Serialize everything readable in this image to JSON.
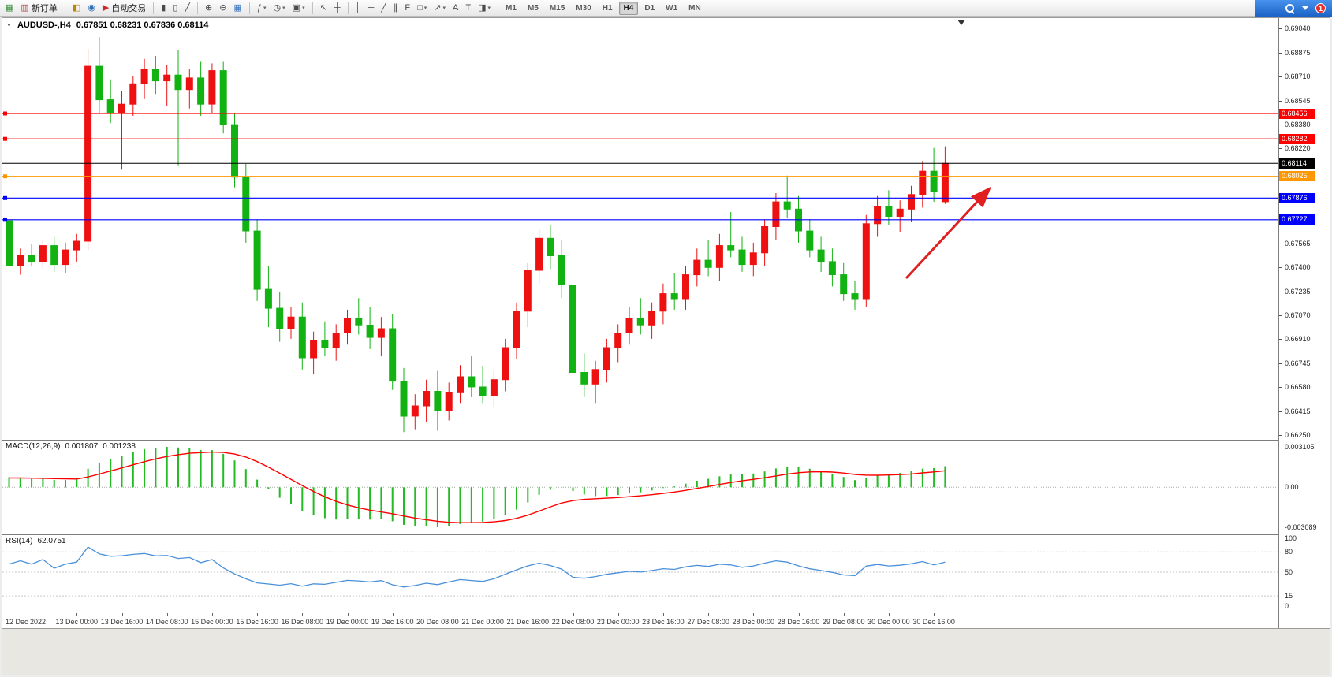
{
  "toolbar": {
    "caret_glyph": "▾",
    "groups": [
      {
        "items": [
          {
            "name": "new-chart-icon",
            "glyph": "▦",
            "color": "#3a8f3a"
          },
          {
            "name": "new-order-button",
            "glyph": "▥",
            "color": "#b04040",
            "label": "新订单"
          }
        ]
      },
      {
        "items": [
          {
            "name": "charts-icon",
            "glyph": "◧",
            "color": "#b8860b"
          },
          {
            "name": "market-watch-icon",
            "glyph": "◉",
            "color": "#2b6cb8"
          },
          {
            "name": "auto-trading-button",
            "glyph": "▶",
            "color": "#cc2b2b",
            "label": "自动交易"
          }
        ]
      },
      {
        "items": [
          {
            "name": "bar-chart-icon",
            "glyph": "▮"
          },
          {
            "name": "candlestick-chart-icon",
            "glyph": "▯"
          },
          {
            "name": "line-chart-icon",
            "glyph": "╱"
          }
        ]
      },
      {
        "items": [
          {
            "name": "zoom-in-icon",
            "glyph": "⊕"
          },
          {
            "name": "zoom-out-icon",
            "glyph": "⊖"
          },
          {
            "name": "tile-windows-icon",
            "glyph": "▦",
            "color": "#2b6cb8"
          }
        ]
      },
      {
        "items": [
          {
            "name": "indicators-icon",
            "glyph": "ƒ",
            "caret": true
          },
          {
            "name": "periods-icon",
            "glyph": "◷",
            "caret": true
          },
          {
            "name": "templates-icon",
            "glyph": "▣",
            "caret": true
          }
        ]
      },
      {
        "items": [
          {
            "name": "cursor-icon",
            "glyph": "↖"
          },
          {
            "name": "crosshair-icon",
            "glyph": "┼"
          }
        ]
      },
      {
        "items": [
          {
            "name": "vertical-line-icon",
            "glyph": "│"
          },
          {
            "name": "horizontal-line-icon",
            "glyph": "─"
          },
          {
            "name": "trendline-icon",
            "glyph": "╱"
          },
          {
            "name": "equidistant-channel-icon",
            "glyph": "∥"
          },
          {
            "name": "fibonacci-icon",
            "glyph": "F"
          },
          {
            "name": "shapes-icon",
            "glyph": "□",
            "caret": true
          },
          {
            "name": "arrows-icon",
            "glyph": "↗",
            "caret": true
          },
          {
            "name": "text-icon",
            "glyph": "A"
          },
          {
            "name": "text-label-icon",
            "glyph": "T"
          },
          {
            "name": "drawing-properties-icon",
            "glyph": "◨",
            "caret": true
          }
        ]
      }
    ],
    "timeframes": [
      "M1",
      "M5",
      "M15",
      "M30",
      "H1",
      "H4",
      "D1",
      "W1",
      "MN"
    ],
    "active_timeframe": "H4",
    "notification_badge": "1"
  },
  "window": {
    "one_click_glyph": "▼"
  },
  "chart_data": {
    "type": "candlestick",
    "symbol": "AUDUSD-",
    "timeframe": "H4",
    "title": "AUDUSD-,H4",
    "ohlc_text": "0.67851 0.68231 0.67836 0.68114",
    "current_bar": {
      "open": 0.67851,
      "high": 0.68231,
      "low": 0.67836,
      "close": 0.68114
    },
    "ylim": [
      0.6625,
      0.6904
    ],
    "price_ticks": [
      "0.69040",
      "0.68875",
      "0.68710",
      "0.68545",
      "0.68380",
      "0.68220",
      "0.67565",
      "0.67400",
      "0.67235",
      "0.67070",
      "0.66910",
      "0.66745",
      "0.66580",
      "0.66415",
      "0.66250"
    ],
    "current_price_label": "0.68114",
    "horizontal_lines": [
      {
        "price": 0.68456,
        "label": "0.68456",
        "color": "#ff0000",
        "type": "resistance"
      },
      {
        "price": 0.68282,
        "label": "0.68282",
        "color": "#ff0000",
        "type": "resistance"
      },
      {
        "price": 0.68025,
        "label": "0.68025",
        "color": "#ff9800",
        "type": "level"
      },
      {
        "price": 0.67876,
        "label": "0.67876",
        "color": "#0000ff",
        "type": "support"
      },
      {
        "price": 0.67727,
        "label": "0.67727",
        "color": "#0000ff",
        "type": "support"
      }
    ],
    "annotation_arrow": {
      "color": "#e02020",
      "direction": "up-right"
    },
    "up_color": "#ee1111",
    "down_color": "#12b212",
    "candles_ohlc": [
      [
        0.6772,
        0.6776,
        0.6734,
        0.6741
      ],
      [
        0.6741,
        0.6753,
        0.6735,
        0.6748
      ],
      [
        0.6748,
        0.6756,
        0.6741,
        0.6744
      ],
      [
        0.6744,
        0.6759,
        0.674,
        0.6755
      ],
      [
        0.6755,
        0.6761,
        0.6737,
        0.6742
      ],
      [
        0.6742,
        0.6757,
        0.6736,
        0.6752
      ],
      [
        0.6752,
        0.6763,
        0.6744,
        0.6758
      ],
      [
        0.6758,
        0.689,
        0.6752,
        0.6878
      ],
      [
        0.6878,
        0.6898,
        0.6846,
        0.6855
      ],
      [
        0.6855,
        0.6869,
        0.6839,
        0.6846
      ],
      [
        0.6846,
        0.6861,
        0.6807,
        0.6852
      ],
      [
        0.6852,
        0.6871,
        0.6844,
        0.6866
      ],
      [
        0.6866,
        0.6883,
        0.6856,
        0.6876
      ],
      [
        0.6876,
        0.6885,
        0.6859,
        0.6868
      ],
      [
        0.6868,
        0.6879,
        0.6851,
        0.6872
      ],
      [
        0.6872,
        0.6889,
        0.681,
        0.6862
      ],
      [
        0.6862,
        0.6876,
        0.6849,
        0.687
      ],
      [
        0.687,
        0.6881,
        0.6844,
        0.6852
      ],
      [
        0.6852,
        0.688,
        0.6846,
        0.6875
      ],
      [
        0.6875,
        0.6881,
        0.6832,
        0.6838
      ],
      [
        0.6838,
        0.6846,
        0.6795,
        0.6802
      ],
      [
        0.6802,
        0.6811,
        0.6757,
        0.6765
      ],
      [
        0.6765,
        0.6773,
        0.6717,
        0.6725
      ],
      [
        0.6725,
        0.6741,
        0.6699,
        0.6712
      ],
      [
        0.6712,
        0.6723,
        0.6689,
        0.6698
      ],
      [
        0.6698,
        0.6713,
        0.6691,
        0.6706
      ],
      [
        0.6706,
        0.6716,
        0.667,
        0.6678
      ],
      [
        0.6678,
        0.6696,
        0.6667,
        0.669
      ],
      [
        0.669,
        0.6703,
        0.6679,
        0.6685
      ],
      [
        0.6685,
        0.6701,
        0.6676,
        0.6695
      ],
      [
        0.6695,
        0.6711,
        0.6687,
        0.6705
      ],
      [
        0.6705,
        0.6719,
        0.6694,
        0.67
      ],
      [
        0.67,
        0.6713,
        0.6684,
        0.6692
      ],
      [
        0.6692,
        0.6706,
        0.6679,
        0.6698
      ],
      [
        0.6698,
        0.6708,
        0.6656,
        0.6662
      ],
      [
        0.6662,
        0.6671,
        0.6627,
        0.6638
      ],
      [
        0.6638,
        0.6653,
        0.6629,
        0.6645
      ],
      [
        0.6645,
        0.6663,
        0.6634,
        0.6655
      ],
      [
        0.6655,
        0.6669,
        0.6628,
        0.6642
      ],
      [
        0.6642,
        0.6661,
        0.6635,
        0.6654
      ],
      [
        0.6654,
        0.6673,
        0.6647,
        0.6665
      ],
      [
        0.6665,
        0.6679,
        0.6651,
        0.6658
      ],
      [
        0.6658,
        0.6672,
        0.6647,
        0.6652
      ],
      [
        0.6652,
        0.6669,
        0.6644,
        0.6663
      ],
      [
        0.6663,
        0.6691,
        0.6655,
        0.6685
      ],
      [
        0.6685,
        0.6716,
        0.6677,
        0.671
      ],
      [
        0.671,
        0.6743,
        0.6699,
        0.6738
      ],
      [
        0.6738,
        0.6766,
        0.6729,
        0.676
      ],
      [
        0.676,
        0.6769,
        0.6739,
        0.6748
      ],
      [
        0.6748,
        0.6759,
        0.6719,
        0.6728
      ],
      [
        0.6728,
        0.6736,
        0.6659,
        0.6668
      ],
      [
        0.6668,
        0.6681,
        0.6651,
        0.666
      ],
      [
        0.666,
        0.6676,
        0.6647,
        0.667
      ],
      [
        0.667,
        0.6691,
        0.6661,
        0.6685
      ],
      [
        0.6685,
        0.6701,
        0.6675,
        0.6695
      ],
      [
        0.6695,
        0.6713,
        0.6687,
        0.6705
      ],
      [
        0.6705,
        0.6719,
        0.6694,
        0.67
      ],
      [
        0.67,
        0.6716,
        0.6691,
        0.671
      ],
      [
        0.671,
        0.6729,
        0.6701,
        0.6722
      ],
      [
        0.6722,
        0.6736,
        0.6711,
        0.6718
      ],
      [
        0.6718,
        0.6741,
        0.6711,
        0.6735
      ],
      [
        0.6735,
        0.6753,
        0.6727,
        0.6745
      ],
      [
        0.6745,
        0.6759,
        0.6734,
        0.674
      ],
      [
        0.674,
        0.6763,
        0.6731,
        0.6755
      ],
      [
        0.6755,
        0.6778,
        0.6747,
        0.6752
      ],
      [
        0.6752,
        0.6761,
        0.6737,
        0.6742
      ],
      [
        0.6742,
        0.6757,
        0.6734,
        0.675
      ],
      [
        0.675,
        0.6773,
        0.6741,
        0.6768
      ],
      [
        0.6768,
        0.6791,
        0.6759,
        0.6785
      ],
      [
        0.6785,
        0.6803,
        0.6774,
        0.678
      ],
      [
        0.678,
        0.6789,
        0.6757,
        0.6765
      ],
      [
        0.6765,
        0.6773,
        0.6747,
        0.6752
      ],
      [
        0.6752,
        0.6761,
        0.6737,
        0.6744
      ],
      [
        0.6744,
        0.6753,
        0.6727,
        0.6735
      ],
      [
        0.6735,
        0.6743,
        0.6717,
        0.6722
      ],
      [
        0.6722,
        0.6731,
        0.6711,
        0.6718
      ],
      [
        0.6718,
        0.6776,
        0.6713,
        0.677
      ],
      [
        0.677,
        0.6789,
        0.6761,
        0.6782
      ],
      [
        0.6782,
        0.6793,
        0.6769,
        0.6775
      ],
      [
        0.6775,
        0.6786,
        0.6764,
        0.678
      ],
      [
        0.678,
        0.6796,
        0.6771,
        0.679
      ],
      [
        0.679,
        0.6813,
        0.6781,
        0.6806
      ],
      [
        0.6806,
        0.6822,
        0.6785,
        0.6792
      ],
      [
        0.67851,
        0.68231,
        0.67836,
        0.68114
      ]
    ],
    "time_labels": [
      "12 Dec 2022",
      "13 Dec 00:00",
      "13 Dec 16:00",
      "14 Dec 08:00",
      "15 Dec 00:00",
      "15 Dec 16:00",
      "16 Dec 08:00",
      "19 Dec 00:00",
      "19 Dec 16:00",
      "20 Dec 08:00",
      "21 Dec 00:00",
      "21 Dec 16:00",
      "22 Dec 08:00",
      "23 Dec 00:00",
      "23 Dec 16:00",
      "27 Dec 08:00",
      "28 Dec 00:00",
      "28 Dec 16:00",
      "29 Dec 08:00",
      "30 Dec 00:00",
      "30 Dec 16:00"
    ],
    "macd": {
      "label": "MACD(12,26,9)",
      "value_main": "0.001807",
      "value_signal": "0.001238",
      "params": [
        12,
        26,
        9
      ],
      "scale_labels": {
        "top": "0.003105",
        "zero": "0.00",
        "bottom": "-0.003089"
      },
      "histogram_color": "#22bb22",
      "signal_color": "#ff0000"
    },
    "rsi": {
      "label": "RSI(14)",
      "value": "62.0751",
      "period": 14,
      "scale_labels": [
        "100",
        "80",
        "50",
        "15",
        "0"
      ],
      "levels": [
        80,
        50,
        15
      ],
      "line_color": "#4a90d9"
    }
  }
}
